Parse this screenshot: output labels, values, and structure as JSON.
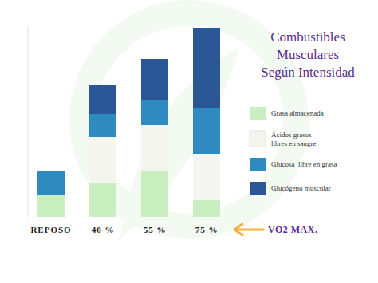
{
  "chart_data": {
    "type": "bar",
    "stacked": true,
    "title": "Combustibles Musculares Según Intensidad",
    "categories": [
      "REPOSO",
      "40 %",
      "55 %",
      "75 %"
    ],
    "series": [
      {
        "name": "Grasa almacenada",
        "color": "#c9efc1",
        "values": [
          28,
          42,
          57,
          21
        ]
      },
      {
        "name": "Ácidos grasos libres en sangre",
        "color": "#f5f5f0",
        "values": [
          0,
          58,
          58,
          58
        ]
      },
      {
        "name": "Glucosa  libre en grasa",
        "color": "#2f8ac0",
        "values": [
          29,
          29,
          32,
          58
        ]
      },
      {
        "name": "Glucógeno muscular",
        "color": "#2b5797",
        "values": [
          0,
          36,
          51,
          100
        ]
      }
    ],
    "ylim": [
      0,
      240
    ],
    "tick_labels": "x",
    "grid": false,
    "legend": "right",
    "annotation": "VO2 MAX."
  }
}
